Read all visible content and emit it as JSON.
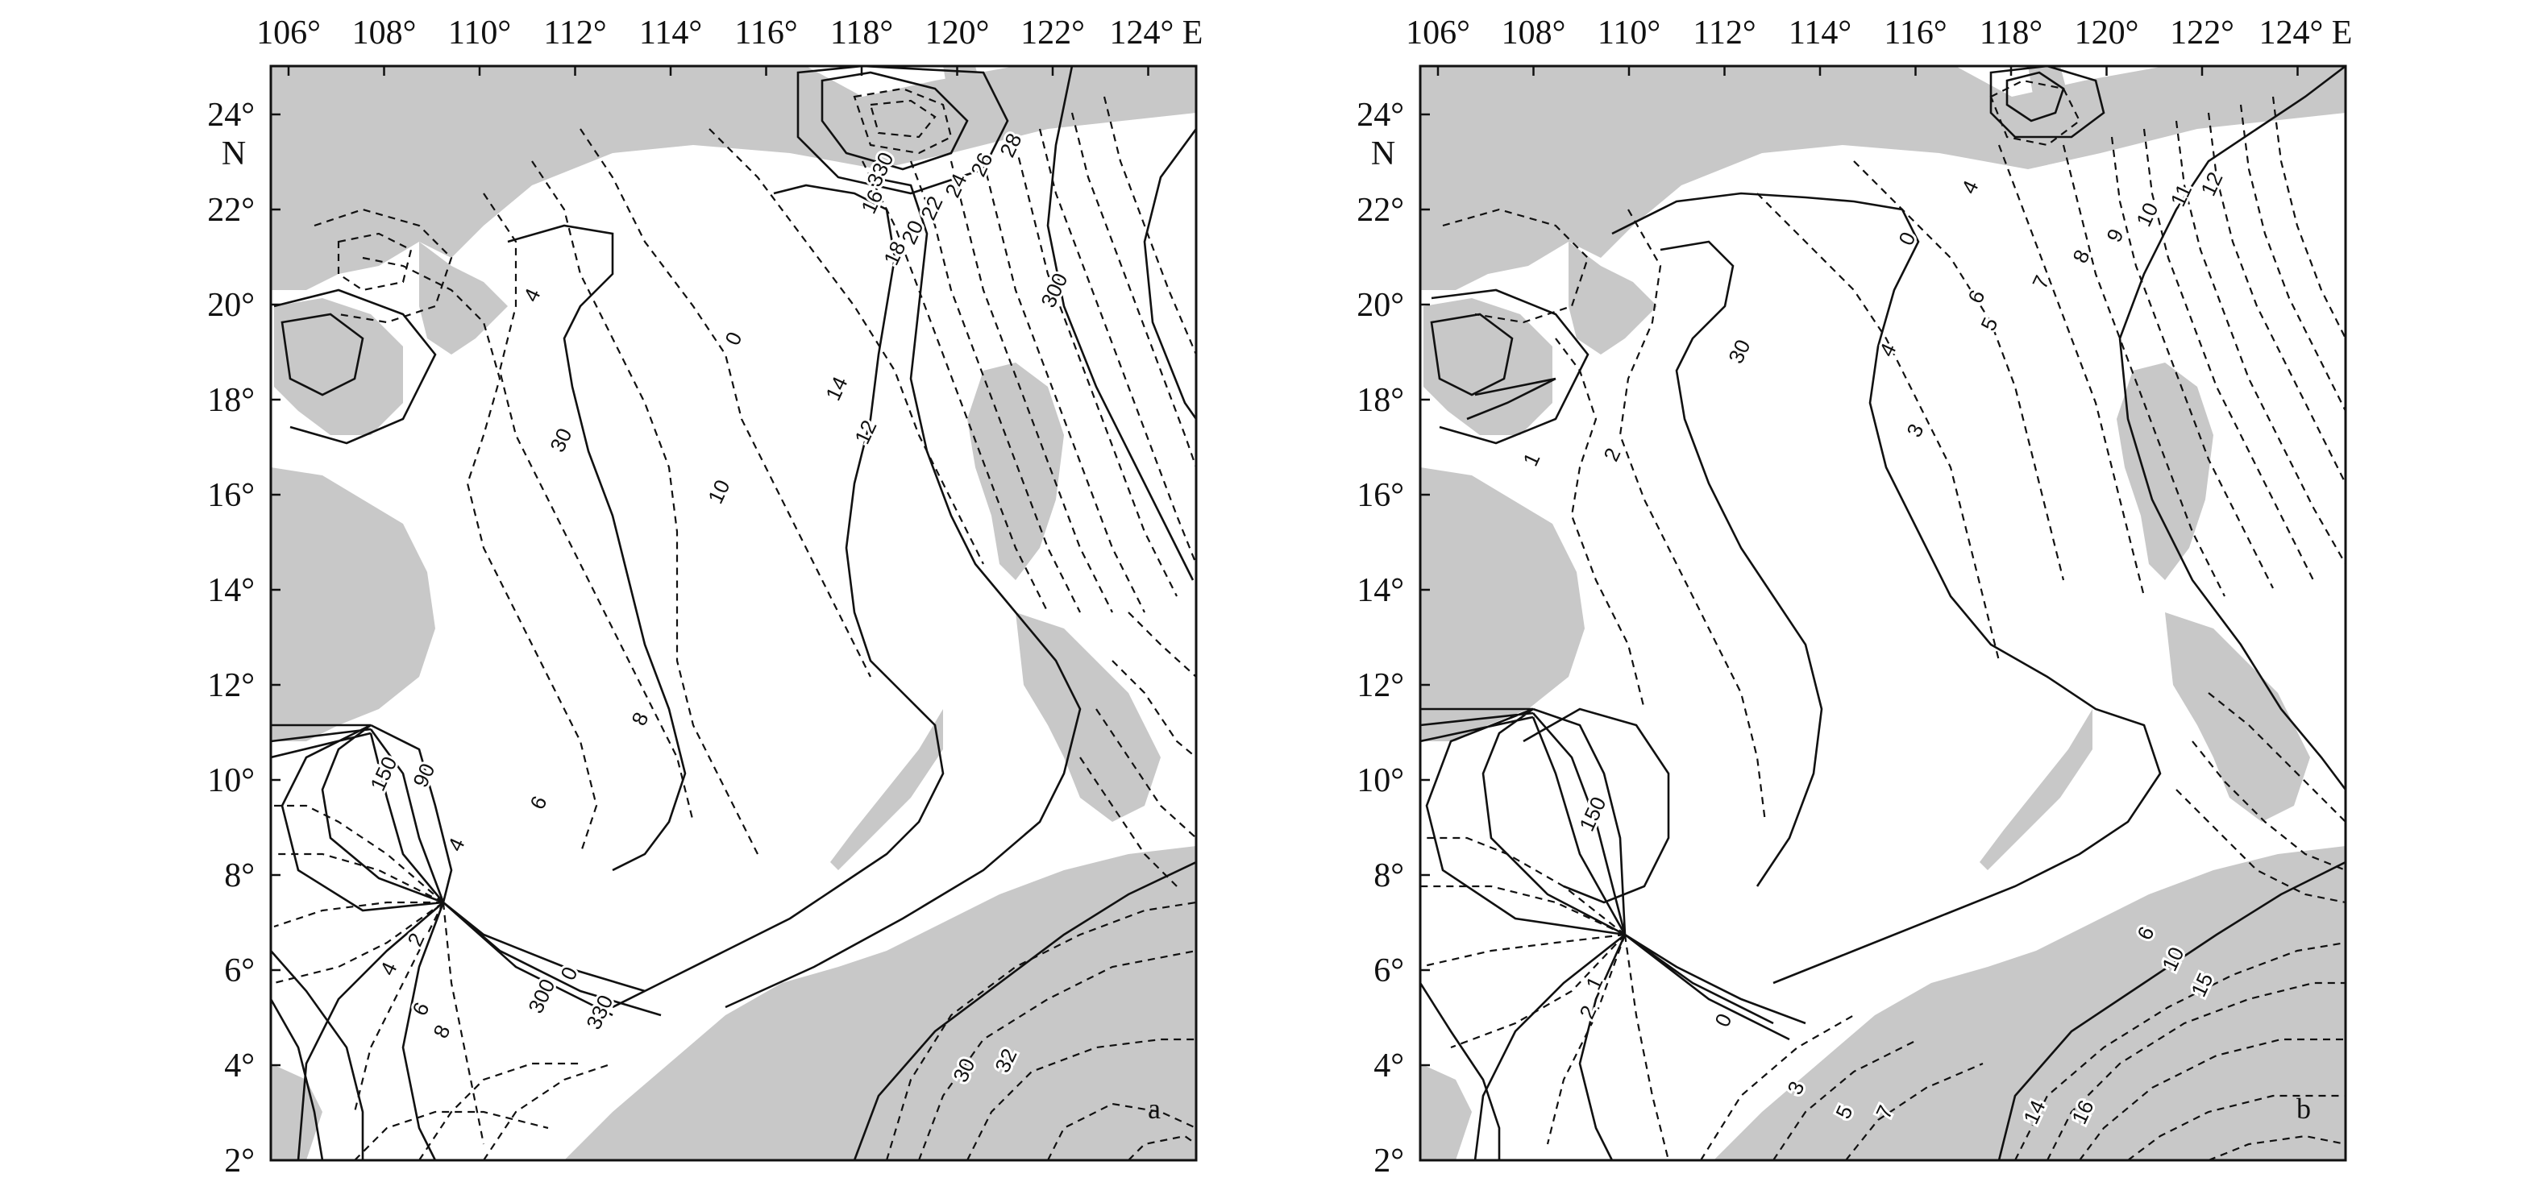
{
  "colors": {
    "land": "#c8c8c8",
    "line": "#111111",
    "background": "#ffffff"
  },
  "maps": [
    {
      "id": "a",
      "panel_label": "a",
      "longitude_ticks": [
        "106°",
        "108°",
        "110°",
        "112°",
        "114°",
        "116°",
        "118°",
        "120°",
        "122°",
        "124° E"
      ],
      "latitude_ticks": [
        "2°",
        "4°",
        "6°",
        "8°",
        "10°",
        "12°",
        "14°",
        "16°",
        "18°",
        "20°",
        "22°",
        "24°"
      ],
      "latitude_hemisphere": "N",
      "contour_labels": [
        "330",
        "16",
        "18",
        "20",
        "22",
        "24",
        "26",
        "28",
        "300",
        "0",
        "12",
        "14",
        "10",
        "30",
        "8",
        "6",
        "4",
        "150",
        "90",
        "2",
        "4",
        "6",
        "8",
        "0",
        "300",
        "330",
        "30",
        "32",
        "4"
      ]
    },
    {
      "id": "b",
      "panel_label": "b",
      "longitude_ticks": [
        "106°",
        "108°",
        "110°",
        "112°",
        "114°",
        "116°",
        "118°",
        "120°",
        "122°",
        "124° E"
      ],
      "latitude_ticks": [
        "2°",
        "4°",
        "6°",
        "8°",
        "10°",
        "12°",
        "14°",
        "16°",
        "18°",
        "20°",
        "22°",
        "24°"
      ],
      "latitude_hemisphere": "N",
      "contour_labels": [
        "4",
        "0",
        "6",
        "7",
        "8",
        "9",
        "10",
        "11",
        "12",
        "5",
        "30",
        "4",
        "3",
        "2",
        "1",
        "150",
        "1",
        "2",
        "0",
        "3",
        "5",
        "7",
        "14",
        "16",
        "6",
        "10",
        "15"
      ]
    }
  ]
}
